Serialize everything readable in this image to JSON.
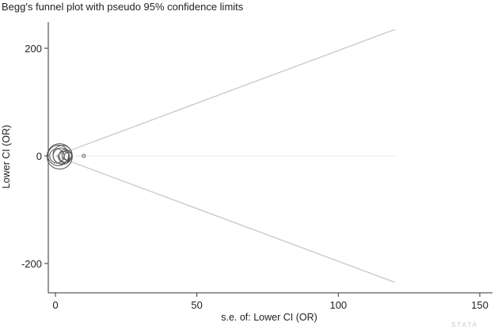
{
  "chart_data": {
    "type": "scatter",
    "title": "Begg's funnel plot with pseudo 95% confidence limits",
    "xlabel": "s.e. of: Lower CI (OR)",
    "ylabel": "Lower CI (OR)",
    "xlim": [
      -2,
      155
    ],
    "ylim": [
      -245,
      240
    ],
    "xticks": [
      0,
      50,
      100,
      150
    ],
    "yticks": [
      200,
      0,
      -200
    ],
    "grid": false,
    "summary_estimate": 0,
    "funnel_limits": {
      "x_end": 120,
      "upper_end": 235,
      "lower_end": -235
    },
    "points": [
      {
        "x": 0.5,
        "y": 0
      },
      {
        "x": 1.0,
        "y": 1
      },
      {
        "x": 1.5,
        "y": -1
      },
      {
        "x": 2.0,
        "y": 0
      },
      {
        "x": 2.5,
        "y": 2
      },
      {
        "x": 3.0,
        "y": -2
      },
      {
        "x": 3.5,
        "y": 0
      },
      {
        "x": 4.0,
        "y": 1
      },
      {
        "x": 4.5,
        "y": -1
      },
      {
        "x": 10.0,
        "y": 0
      }
    ],
    "point_sizes": [
      9,
      13,
      16,
      10,
      12,
      7,
      8,
      6,
      5,
      2
    ]
  },
  "watermark": "STATA"
}
